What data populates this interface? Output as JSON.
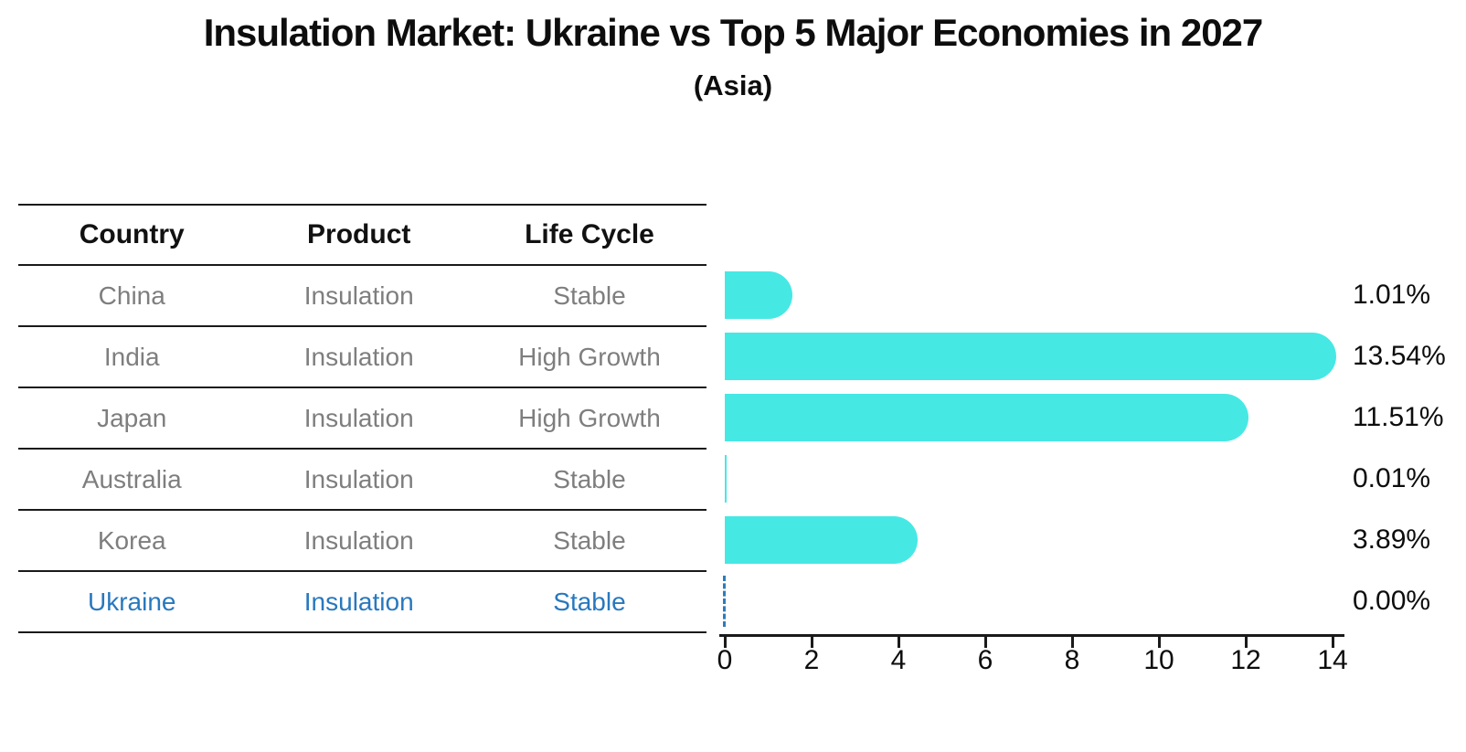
{
  "title": "Insulation Market: Ukraine vs Top 5 Major Economies in 2027",
  "subtitle": "(Asia)",
  "table": {
    "headers": [
      "Country",
      "Product",
      "Life Cycle"
    ],
    "rows": [
      {
        "country": "China",
        "product": "Insulation",
        "life_cycle": "Stable",
        "highlight": false
      },
      {
        "country": "India",
        "product": "Insulation",
        "life_cycle": "High Growth",
        "highlight": false
      },
      {
        "country": "Japan",
        "product": "Insulation",
        "life_cycle": "High Growth",
        "highlight": false
      },
      {
        "country": "Australia",
        "product": "Insulation",
        "life_cycle": "Stable",
        "highlight": false
      },
      {
        "country": "Korea",
        "product": "Insulation",
        "life_cycle": "Stable",
        "highlight": false
      },
      {
        "country": "Ukraine",
        "product": "Insulation",
        "life_cycle": "Stable",
        "highlight": true
      }
    ]
  },
  "chart_data": {
    "type": "bar",
    "orientation": "horizontal",
    "title": "Insulation Market: Ukraine vs Top 5 Major Economies in 2027",
    "subtitle": "(Asia)",
    "categories": [
      "China",
      "India",
      "Japan",
      "Australia",
      "Korea",
      "Ukraine"
    ],
    "values": [
      1.01,
      13.54,
      11.51,
      0.01,
      3.89,
      0.0
    ],
    "value_labels": [
      "1.01%",
      "13.54%",
      "11.51%",
      "0.01%",
      "3.89%",
      "0.00%"
    ],
    "x_ticks": [
      0,
      2,
      4,
      6,
      8,
      10,
      12,
      14
    ],
    "xlim": [
      0,
      14
    ],
    "xlabel": "",
    "ylabel": "",
    "grid": false,
    "legend": "none",
    "bar_color": "#46E8E4",
    "highlight_row_color": "#2878BE",
    "zero_marker": "dashed vertical line at 0 for Ukraine"
  }
}
